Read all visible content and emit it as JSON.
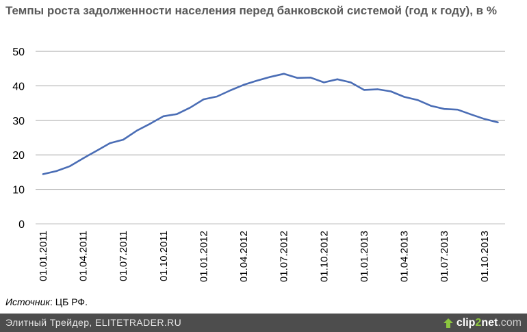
{
  "chart_data": {
    "type": "line",
    "title": "Темпы роста задолженности населения перед банковской системой (год к году), в %",
    "xlabel": "",
    "ylabel": "",
    "ylim": [
      0,
      50
    ],
    "yticks": [
      0,
      10,
      20,
      30,
      40,
      50
    ],
    "grid": true,
    "legend": "none",
    "line_color": "#4a6db5",
    "x_tick_labels": [
      "01.01.2011",
      "01.04.2011",
      "01.07.2011",
      "01.10.2011",
      "01.01.2012",
      "01.04.2012",
      "01.07.2012",
      "01.10.2012",
      "01.01.2013",
      "01.04.2013",
      "01.07.2013",
      "01.10.2013"
    ],
    "x": [
      "01.01.2011",
      "01.02.2011",
      "01.03.2011",
      "01.04.2011",
      "01.05.2011",
      "01.06.2011",
      "01.07.2011",
      "01.08.2011",
      "01.09.2011",
      "01.10.2011",
      "01.11.2011",
      "01.12.2011",
      "01.01.2012",
      "01.02.2012",
      "01.03.2012",
      "01.04.2012",
      "01.05.2012",
      "01.06.2012",
      "01.07.2012",
      "01.08.2012",
      "01.09.2012",
      "01.10.2012",
      "01.11.2012",
      "01.12.2012",
      "01.01.2013",
      "01.02.2013",
      "01.03.2013",
      "01.04.2013",
      "01.05.2013",
      "01.06.2013",
      "01.07.2013",
      "01.08.2013",
      "01.09.2013",
      "01.10.2013",
      "01.11.2013"
    ],
    "series": [
      {
        "values": [
          14.4,
          15.3,
          16.7,
          19.0,
          21.2,
          23.4,
          24.4,
          27.0,
          29.0,
          31.2,
          31.8,
          33.7,
          36.1,
          36.9,
          38.7,
          40.3,
          41.5,
          42.6,
          43.5,
          42.3,
          42.4,
          41.0,
          41.9,
          41.0,
          38.8,
          39.0,
          38.4,
          36.8,
          35.9,
          34.2,
          33.3,
          33.1,
          31.7,
          30.4,
          29.4
        ]
      }
    ]
  },
  "source": {
    "label": "Источник",
    "value": ": ЦБ РФ."
  },
  "footer": {
    "text": "Элитный Трейдер, ELITETRADER.RU",
    "brand_part1": "clip",
    "brand_part2": "2",
    "brand_part3": "net",
    "brand_domain": ".com",
    "brand_icon": "arrow-up-icon"
  }
}
